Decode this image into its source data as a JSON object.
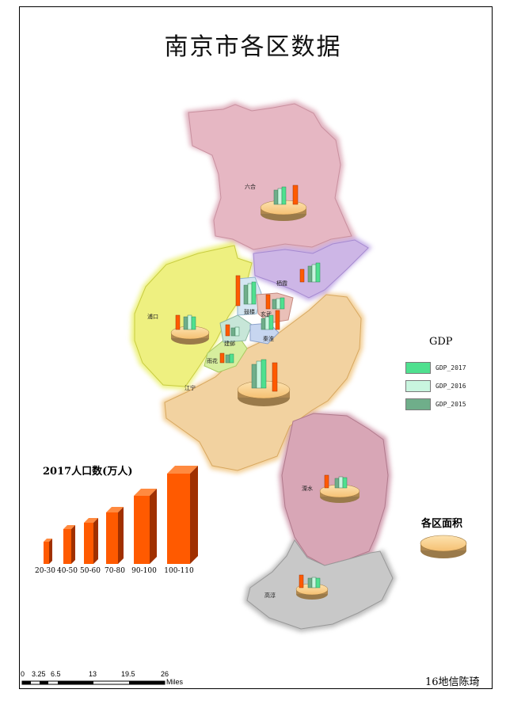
{
  "title": "南京市各区数据",
  "districts": {
    "luhe": "六合",
    "qixia": "栖霞",
    "pukou": "浦口",
    "gulou": "鼓楼",
    "xuanwu": "玄武",
    "jianye": "建邺",
    "qinhuai": "秦淮",
    "yuhuatai": "雨花",
    "jiangning": "江宁",
    "lishui": "溧水",
    "gaochun": "高淳"
  },
  "gdp_legend": {
    "title": "GDP",
    "items": [
      {
        "label": "GDP_2017",
        "color": "#4fe08f"
      },
      {
        "label": "GDP_2016",
        "color": "#c9f5df"
      },
      {
        "label": "GDP_2015",
        "color": "#6fae8a"
      }
    ]
  },
  "population_legend": {
    "title": "2017人口数(万人)",
    "classes": [
      "20-30",
      "40-50",
      "50-60",
      "70-80",
      "90-100",
      "100-110"
    ],
    "color": "#ff5a00"
  },
  "area_legend": {
    "title": "各区面积"
  },
  "scale_bar": {
    "labels": [
      "0",
      "3.25",
      "6.5",
      "13",
      "19.5",
      "26"
    ],
    "unit": "Miles"
  },
  "credit": "16地信陈琦",
  "colors": {
    "luhe": "#e8b8c4",
    "qixia": "#cdb4e8",
    "pukou": "#eef07a",
    "jiangning": "#f2d09a",
    "lishui": "#d9a4b4",
    "gaochun": "#c4c4c4",
    "yuhuatai": "#d4ec9c",
    "disc": "#f9c97c"
  }
}
